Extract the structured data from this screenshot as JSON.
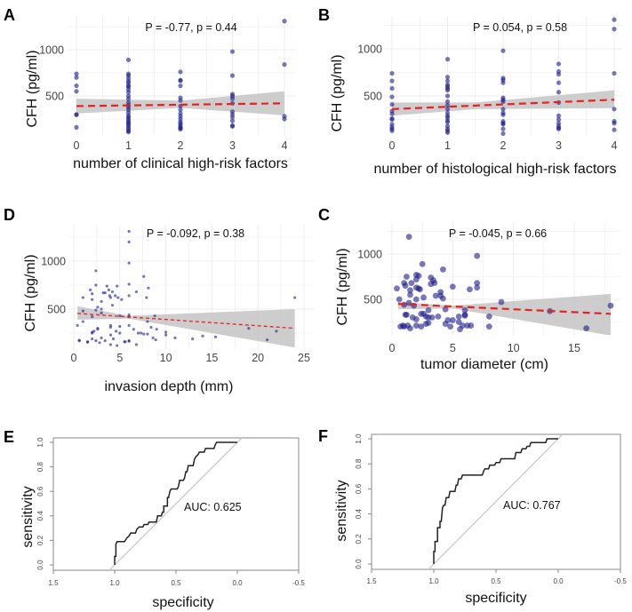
{
  "colors": {
    "points": "#1c1c8a",
    "fit_line": "#e8201f",
    "ci_band": "#c4c4c4",
    "roc_curve": "#222222",
    "diagonal": "#c8c8c8",
    "grid": "#ececec"
  },
  "chart_data": [
    {
      "panel": "A",
      "type": "scatter",
      "annotation": "P = -0.77, p = 0.44",
      "xlabel": "number of clinical high-risk factors",
      "ylabel": "CFH (pg/ml)",
      "x_ticks": [
        "0",
        "1",
        "2",
        "3",
        "4"
      ],
      "y_ticks": [
        "500",
        "1000"
      ],
      "xlim": [
        -0.2,
        4.2
      ],
      "ylim": [
        80,
        1350
      ],
      "grid": true,
      "points_by_category": [
        [
          740,
          700,
          610,
          550,
          300,
          295,
          160
        ],
        [
          890,
          740,
          720,
          690,
          660,
          640,
          610,
          600,
          570,
          540,
          500,
          470,
          430,
          400,
          380,
          350,
          320,
          290,
          270,
          250,
          230,
          210,
          200,
          180,
          160,
          140,
          120,
          110
        ],
        [
          760,
          670,
          665,
          610,
          480,
          450,
          390,
          350,
          310,
          280,
          250,
          220,
          200,
          180,
          160,
          150,
          140
        ],
        [
          980,
          720,
          520,
          500,
          470,
          420,
          330,
          300,
          270,
          230,
          180,
          170
        ],
        [
          1310,
          840,
          280,
          250
        ]
      ],
      "fit": {
        "x": [
          0,
          4
        ],
        "y": [
          390,
          420
        ]
      },
      "ci": {
        "x": [
          0,
          2,
          4
        ],
        "lower": [
          310,
          370,
          290
        ],
        "upper": [
          470,
          450,
          550
        ]
      }
    },
    {
      "panel": "B",
      "type": "scatter",
      "annotation": "P = 0.054, p = 0.58",
      "xlabel": "number of histological high-risk factors",
      "ylabel": "CFH (pg/ml)",
      "x_ticks": [
        "0",
        "1",
        "2",
        "3",
        "4"
      ],
      "y_ticks": [
        "500",
        "1000"
      ],
      "xlim": [
        -0.2,
        4.2
      ],
      "ylim": [
        80,
        1350
      ],
      "grid": true,
      "points_by_category": [
        [
          740,
          660,
          580,
          490,
          410,
          340,
          310,
          260,
          250,
          200,
          170,
          150,
          130
        ],
        [
          890,
          700,
          660,
          620,
          600,
          580,
          560,
          500,
          440,
          400,
          360,
          320,
          290,
          270,
          240,
          220,
          180,
          150,
          130,
          110
        ],
        [
          980,
          690,
          670,
          640,
          480,
          460,
          440,
          360,
          320,
          300,
          230,
          210,
          200,
          150,
          100
        ],
        [
          840,
          760,
          730,
          640,
          540,
          430,
          290,
          250,
          210,
          180,
          160,
          150
        ],
        [
          1310,
          1210,
          740,
          360,
          230,
          210,
          140
        ]
      ],
      "fit": {
        "x": [
          0,
          4
        ],
        "y": [
          360,
          460
        ]
      },
      "ci": {
        "x": [
          0,
          1.5,
          4
        ],
        "lower": [
          290,
          360,
          370
        ],
        "upper": [
          430,
          430,
          560
        ]
      }
    },
    {
      "panel": "D",
      "type": "scatter",
      "annotation": "P = -0.092, p = 0.38",
      "xlabel": "invasion depth (mm)",
      "ylabel": "CFH (pg/ml)",
      "x_ticks": [
        "0",
        "5",
        "10",
        "15",
        "20",
        "25"
      ],
      "y_ticks": [
        "500",
        "1000"
      ],
      "xlim": [
        0,
        25
      ],
      "ylim": [
        80,
        1350
      ],
      "grid": true,
      "points": [
        [
          0.4,
          330
        ],
        [
          0.6,
          175
        ],
        [
          0.6,
          170
        ],
        [
          1,
          620
        ],
        [
          1,
          370
        ],
        [
          1,
          480
        ],
        [
          1.5,
          160
        ],
        [
          1.5,
          155
        ],
        [
          1.8,
          700
        ],
        [
          2,
          660
        ],
        [
          2,
          600
        ],
        [
          2,
          420
        ],
        [
          2,
          260
        ],
        [
          2,
          250
        ],
        [
          2,
          190
        ],
        [
          2.2,
          270
        ],
        [
          2.4,
          900
        ],
        [
          2.4,
          750
        ],
        [
          2.4,
          490
        ],
        [
          2.4,
          170
        ],
        [
          2.6,
          520
        ],
        [
          2.6,
          300
        ],
        [
          2.6,
          290
        ],
        [
          2.8,
          150
        ],
        [
          3,
          580
        ],
        [
          3,
          500
        ],
        [
          3,
          460
        ],
        [
          3,
          200
        ],
        [
          3.2,
          670
        ],
        [
          3.4,
          670
        ],
        [
          3.4,
          170
        ],
        [
          3.6,
          740
        ],
        [
          3.8,
          700
        ],
        [
          3.9,
          640
        ],
        [
          4,
          620
        ],
        [
          4,
          330
        ],
        [
          4,
          310
        ],
        [
          4,
          230
        ],
        [
          4,
          130
        ],
        [
          4.2,
          680
        ],
        [
          4.2,
          540
        ],
        [
          4.3,
          190
        ],
        [
          4.5,
          640
        ],
        [
          4.6,
          270
        ],
        [
          4.7,
          740
        ],
        [
          4.7,
          120
        ],
        [
          4.8,
          620
        ],
        [
          5,
          430
        ],
        [
          5,
          250
        ],
        [
          5,
          320
        ],
        [
          5.2,
          600
        ],
        [
          5.5,
          160
        ],
        [
          5.6,
          160
        ],
        [
          6,
          1310
        ],
        [
          6,
          1200
        ],
        [
          6,
          980
        ],
        [
          6,
          760
        ],
        [
          6,
          640
        ],
        [
          6,
          440
        ],
        [
          6,
          420
        ],
        [
          6,
          330
        ],
        [
          6,
          170
        ],
        [
          6,
          165
        ],
        [
          6.5,
          290
        ],
        [
          6.8,
          680
        ],
        [
          6.8,
          130
        ],
        [
          7,
          250
        ],
        [
          7.3,
          250
        ],
        [
          7.6,
          840
        ],
        [
          7.6,
          240
        ],
        [
          7.9,
          620
        ],
        [
          8,
          370
        ],
        [
          8,
          240
        ],
        [
          8.1,
          720
        ],
        [
          8.4,
          310
        ],
        [
          8.6,
          200
        ],
        [
          8.8,
          430
        ],
        [
          8.9,
          180
        ],
        [
          9,
          290
        ],
        [
          10,
          260
        ],
        [
          10,
          230
        ],
        [
          11,
          200
        ],
        [
          12.9,
          190
        ],
        [
          14,
          220
        ],
        [
          15.4,
          210
        ],
        [
          19,
          300
        ],
        [
          21,
          180
        ],
        [
          22,
          270
        ],
        [
          24,
          620
        ]
      ],
      "fit": {
        "x": [
          0.4,
          24
        ],
        "y": [
          455,
          300
        ]
      },
      "ci": {
        "x": [
          0.4,
          6,
          24
        ],
        "lower": [
          390,
          400,
          100
        ],
        "upper": [
          530,
          430,
          500
        ]
      }
    },
    {
      "panel": "C",
      "type": "scatter",
      "annotation": "P = -0.045, p = 0.66",
      "xlabel": "tumor diameter (cm)",
      "ylabel": "CFH (pg/ml)",
      "x_ticks": [
        "0",
        "5",
        "10",
        "15"
      ],
      "y_ticks": [
        "500",
        "1000"
      ],
      "xlim": [
        0,
        18
      ],
      "ylim": [
        80,
        1300
      ],
      "grid": true,
      "points": [
        [
          0.4,
          620
        ],
        [
          0.6,
          500
        ],
        [
          0.7,
          200
        ],
        [
          0.9,
          210
        ],
        [
          1,
          680
        ],
        [
          1,
          440
        ],
        [
          1,
          200
        ],
        [
          1.1,
          650
        ],
        [
          1.1,
          330
        ],
        [
          1.2,
          750
        ],
        [
          1.2,
          330
        ],
        [
          1.3,
          210
        ],
        [
          1.4,
          1190
        ],
        [
          1.4,
          460
        ],
        [
          1.5,
          600
        ],
        [
          1.5,
          550
        ],
        [
          1.5,
          180
        ],
        [
          1.6,
          680
        ],
        [
          1.7,
          300
        ],
        [
          1.8,
          430
        ],
        [
          2,
          770
        ],
        [
          2,
          720
        ],
        [
          2,
          630
        ],
        [
          2,
          500
        ],
        [
          2,
          280
        ],
        [
          2,
          210
        ],
        [
          2.2,
          760
        ],
        [
          2.2,
          620
        ],
        [
          2.3,
          610
        ],
        [
          2.4,
          340
        ],
        [
          2.4,
          200
        ],
        [
          2.5,
          890
        ],
        [
          2.6,
          340
        ],
        [
          2.6,
          520
        ],
        [
          2.8,
          310
        ],
        [
          2.8,
          230
        ],
        [
          3,
          300
        ],
        [
          3,
          240
        ],
        [
          3,
          380
        ],
        [
          3.2,
          740
        ],
        [
          3.2,
          670
        ],
        [
          3.3,
          300
        ],
        [
          3.4,
          710
        ],
        [
          3.5,
          680
        ],
        [
          3.6,
          540
        ],
        [
          3.8,
          310
        ],
        [
          4,
          580
        ],
        [
          4,
          540
        ],
        [
          4.2,
          830
        ],
        [
          4.2,
          510
        ],
        [
          4.4,
          390
        ],
        [
          4.4,
          230
        ],
        [
          4.6,
          270
        ],
        [
          4.8,
          200
        ],
        [
          5,
          640
        ],
        [
          5,
          270
        ],
        [
          5.5,
          310
        ],
        [
          5.5,
          250
        ],
        [
          5.6,
          170
        ],
        [
          5.8,
          210
        ],
        [
          6,
          380
        ],
        [
          6,
          330
        ],
        [
          6,
          320
        ],
        [
          6.2,
          210
        ],
        [
          6.4,
          610
        ],
        [
          6.5,
          210
        ],
        [
          7,
          980
        ],
        [
          7,
          680
        ],
        [
          7,
          630
        ],
        [
          8,
          310
        ],
        [
          8,
          200
        ],
        [
          9,
          470
        ],
        [
          13,
          370
        ],
        [
          16,
          180
        ],
        [
          18,
          430
        ]
      ],
      "fit": {
        "x": [
          0.5,
          18
        ],
        "y": [
          450,
          340
        ]
      },
      "ci": {
        "x": [
          0.5,
          5,
          18
        ],
        "lower": [
          390,
          400,
          100
        ],
        "upper": [
          470,
          430,
          560
        ]
      }
    },
    {
      "panel": "E",
      "type": "line",
      "annotation": "AUC: 0.625",
      "xlabel": "specificity",
      "ylabel": "sensitivity",
      "x_ticks": [
        "1.5",
        "1.0",
        "0.5",
        "0.0",
        "-0.5"
      ],
      "y_ticks": [
        "0.0",
        "0.2",
        "0.4",
        "0.6",
        "0.8",
        "1.0"
      ],
      "xlim": [
        1.5,
        -0.5
      ],
      "ylim": [
        0,
        1
      ],
      "x_reversed": true,
      "grid": false,
      "roc": [
        [
          1,
          0
        ],
        [
          1,
          0.07
        ],
        [
          0.99,
          0.07
        ],
        [
          0.99,
          0.17
        ],
        [
          0.98,
          0.19
        ],
        [
          0.92,
          0.19
        ],
        [
          0.9,
          0.22
        ],
        [
          0.88,
          0.24
        ],
        [
          0.87,
          0.26
        ],
        [
          0.83,
          0.26
        ],
        [
          0.82,
          0.29
        ],
        [
          0.8,
          0.31
        ],
        [
          0.77,
          0.31
        ],
        [
          0.76,
          0.33
        ],
        [
          0.73,
          0.33
        ],
        [
          0.72,
          0.35
        ],
        [
          0.66,
          0.35
        ],
        [
          0.65,
          0.4
        ],
        [
          0.62,
          0.4
        ],
        [
          0.61,
          0.43
        ],
        [
          0.6,
          0.43
        ],
        [
          0.6,
          0.48
        ],
        [
          0.57,
          0.48
        ],
        [
          0.57,
          0.55
        ],
        [
          0.56,
          0.55
        ],
        [
          0.55,
          0.6
        ],
        [
          0.54,
          0.62
        ],
        [
          0.49,
          0.62
        ],
        [
          0.48,
          0.64
        ],
        [
          0.47,
          0.69
        ],
        [
          0.44,
          0.69
        ],
        [
          0.43,
          0.71
        ],
        [
          0.42,
          0.76
        ],
        [
          0.41,
          0.76
        ],
        [
          0.4,
          0.81
        ],
        [
          0.36,
          0.81
        ],
        [
          0.35,
          0.86
        ],
        [
          0.34,
          0.88
        ],
        [
          0.32,
          0.9
        ],
        [
          0.31,
          0.92
        ],
        [
          0.27,
          0.92
        ],
        [
          0.26,
          0.95
        ],
        [
          0.19,
          0.95
        ],
        [
          0.18,
          0.98
        ],
        [
          0.17,
          1
        ],
        [
          0,
          1
        ]
      ]
    },
    {
      "panel": "F",
      "type": "line",
      "annotation": "AUC: 0.767",
      "xlabel": "specificity",
      "ylabel": "sensitivity",
      "x_ticks": [
        "1.5",
        "1.0",
        "0.5",
        "0.0",
        "-0.5"
      ],
      "y_ticks": [
        "0.0",
        "0.2",
        "0.4",
        "0.6",
        "0.8",
        "1.0"
      ],
      "xlim": [
        1.5,
        -0.5
      ],
      "ylim": [
        0,
        1
      ],
      "x_reversed": true,
      "grid": false,
      "roc": [
        [
          1,
          0
        ],
        [
          1,
          0.1
        ],
        [
          0.99,
          0.1
        ],
        [
          0.99,
          0.18
        ],
        [
          0.97,
          0.18
        ],
        [
          0.97,
          0.29
        ],
        [
          0.95,
          0.29
        ],
        [
          0.95,
          0.34
        ],
        [
          0.94,
          0.34
        ],
        [
          0.93,
          0.45
        ],
        [
          0.92,
          0.47
        ],
        [
          0.91,
          0.47
        ],
        [
          0.9,
          0.53
        ],
        [
          0.88,
          0.53
        ],
        [
          0.87,
          0.58
        ],
        [
          0.83,
          0.58
        ],
        [
          0.82,
          0.63
        ],
        [
          0.81,
          0.63
        ],
        [
          0.8,
          0.68
        ],
        [
          0.78,
          0.68
        ],
        [
          0.77,
          0.71
        ],
        [
          0.61,
          0.71
        ],
        [
          0.6,
          0.74
        ],
        [
          0.59,
          0.76
        ],
        [
          0.56,
          0.76
        ],
        [
          0.55,
          0.79
        ],
        [
          0.51,
          0.79
        ],
        [
          0.5,
          0.81
        ],
        [
          0.47,
          0.81
        ],
        [
          0.46,
          0.84
        ],
        [
          0.35,
          0.84
        ],
        [
          0.34,
          0.89
        ],
        [
          0.3,
          0.89
        ],
        [
          0.29,
          0.92
        ],
        [
          0.26,
          0.92
        ],
        [
          0.25,
          0.94
        ],
        [
          0.23,
          0.94
        ],
        [
          0.22,
          0.97
        ],
        [
          0.1,
          0.97
        ],
        [
          0.09,
          1
        ],
        [
          0,
          1
        ]
      ]
    }
  ]
}
